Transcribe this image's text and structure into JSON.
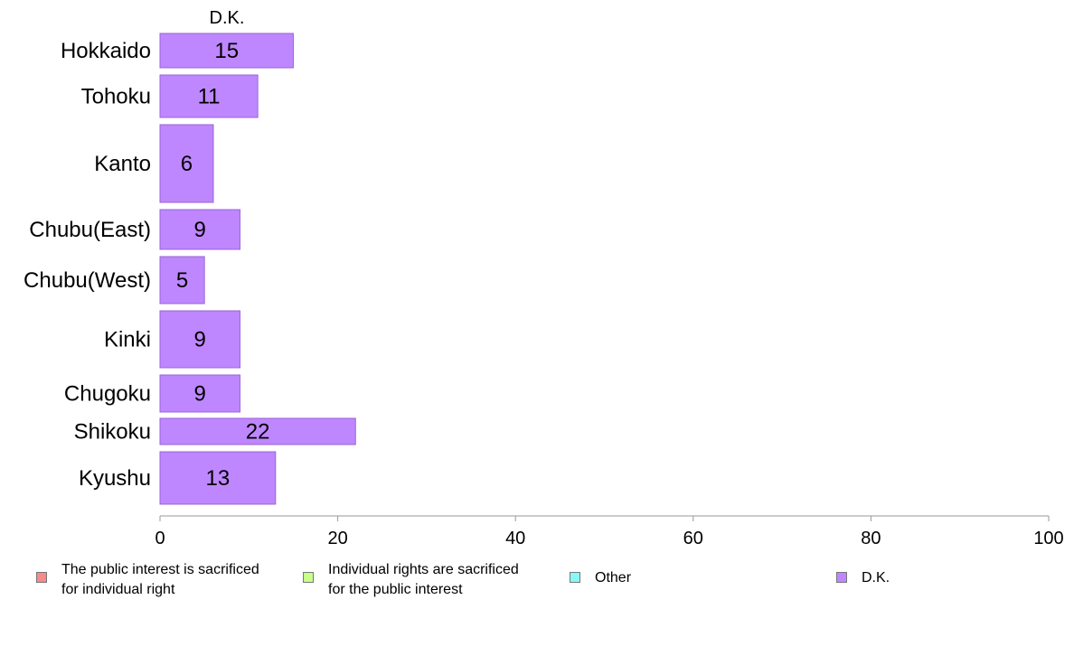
{
  "chart_data": {
    "type": "bar",
    "orientation": "horizontal",
    "categories": [
      "Hokkaido",
      "Tohoku",
      "Kanto",
      "Chubu(East)",
      "Chubu(West)",
      "Kinki",
      "Chugoku",
      "Shikoku",
      "Kyushu"
    ],
    "series": [
      {
        "name": "D.K.",
        "values": [
          15,
          11,
          6,
          9,
          5,
          9,
          9,
          22,
          13
        ],
        "color": "#bf87ff"
      }
    ],
    "xlim": [
      0,
      100
    ],
    "xticks": [
      "0",
      "20",
      "40",
      "60",
      "80",
      "100"
    ],
    "grid": false,
    "legend_position": "bottom",
    "legend": [
      {
        "label": "The public interest is sacrificed\nfor individual right",
        "color": "#f78a8a"
      },
      {
        "label": "Individual rights are sacrificed\nfor the public interest",
        "color": "#c8ff8a"
      },
      {
        "label": "Other",
        "color": "#8af7f7"
      },
      {
        "label": "D.K.",
        "color": "#bf87ff"
      }
    ]
  }
}
